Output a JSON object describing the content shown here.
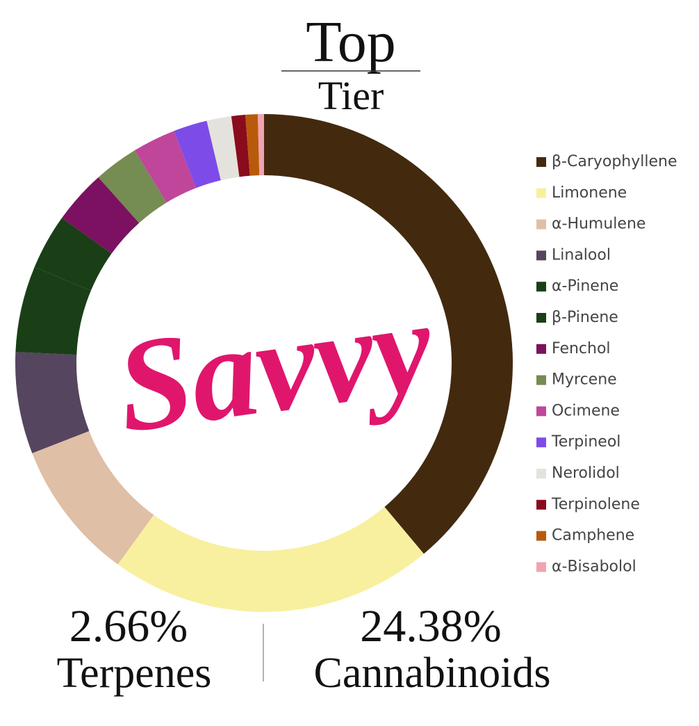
{
  "chart_data": {
    "type": "pie",
    "donut": true,
    "title": "Top",
    "subtitle": "Tier",
    "categories": [
      "β-Caryophyllene",
      "Limonene",
      "α-Humulene",
      "Linalool",
      "α-Pinene",
      "β-Pinene",
      "Fenchol",
      "Myrcene",
      "Ocimene",
      "Terpineol",
      "Nerolidol",
      "Terpinolene",
      "Camphene",
      "α-Bisabolol"
    ],
    "values": [
      38.9,
      21.1,
      9.1,
      6.6,
      5.6,
      3.6,
      3.5,
      2.9,
      2.8,
      2.2,
      1.6,
      0.9,
      0.8,
      0.4
    ],
    "colors": [
      "#432a0e",
      "#f8f09e",
      "#dfbfa6",
      "#56455f",
      "#1a3f16",
      "#1a3f16",
      "#7b1160",
      "#758c52",
      "#c0469b",
      "#7d4ce8",
      "#e4e2dc",
      "#8a0b1b",
      "#b85a0b",
      "#f0a3b0"
    ],
    "legend": "right"
  },
  "logo": "Savvy",
  "stats": [
    {
      "value": "2.66%",
      "label": "Terpenes"
    },
    {
      "value": "24.38%",
      "label": "Cannabinoids"
    }
  ]
}
